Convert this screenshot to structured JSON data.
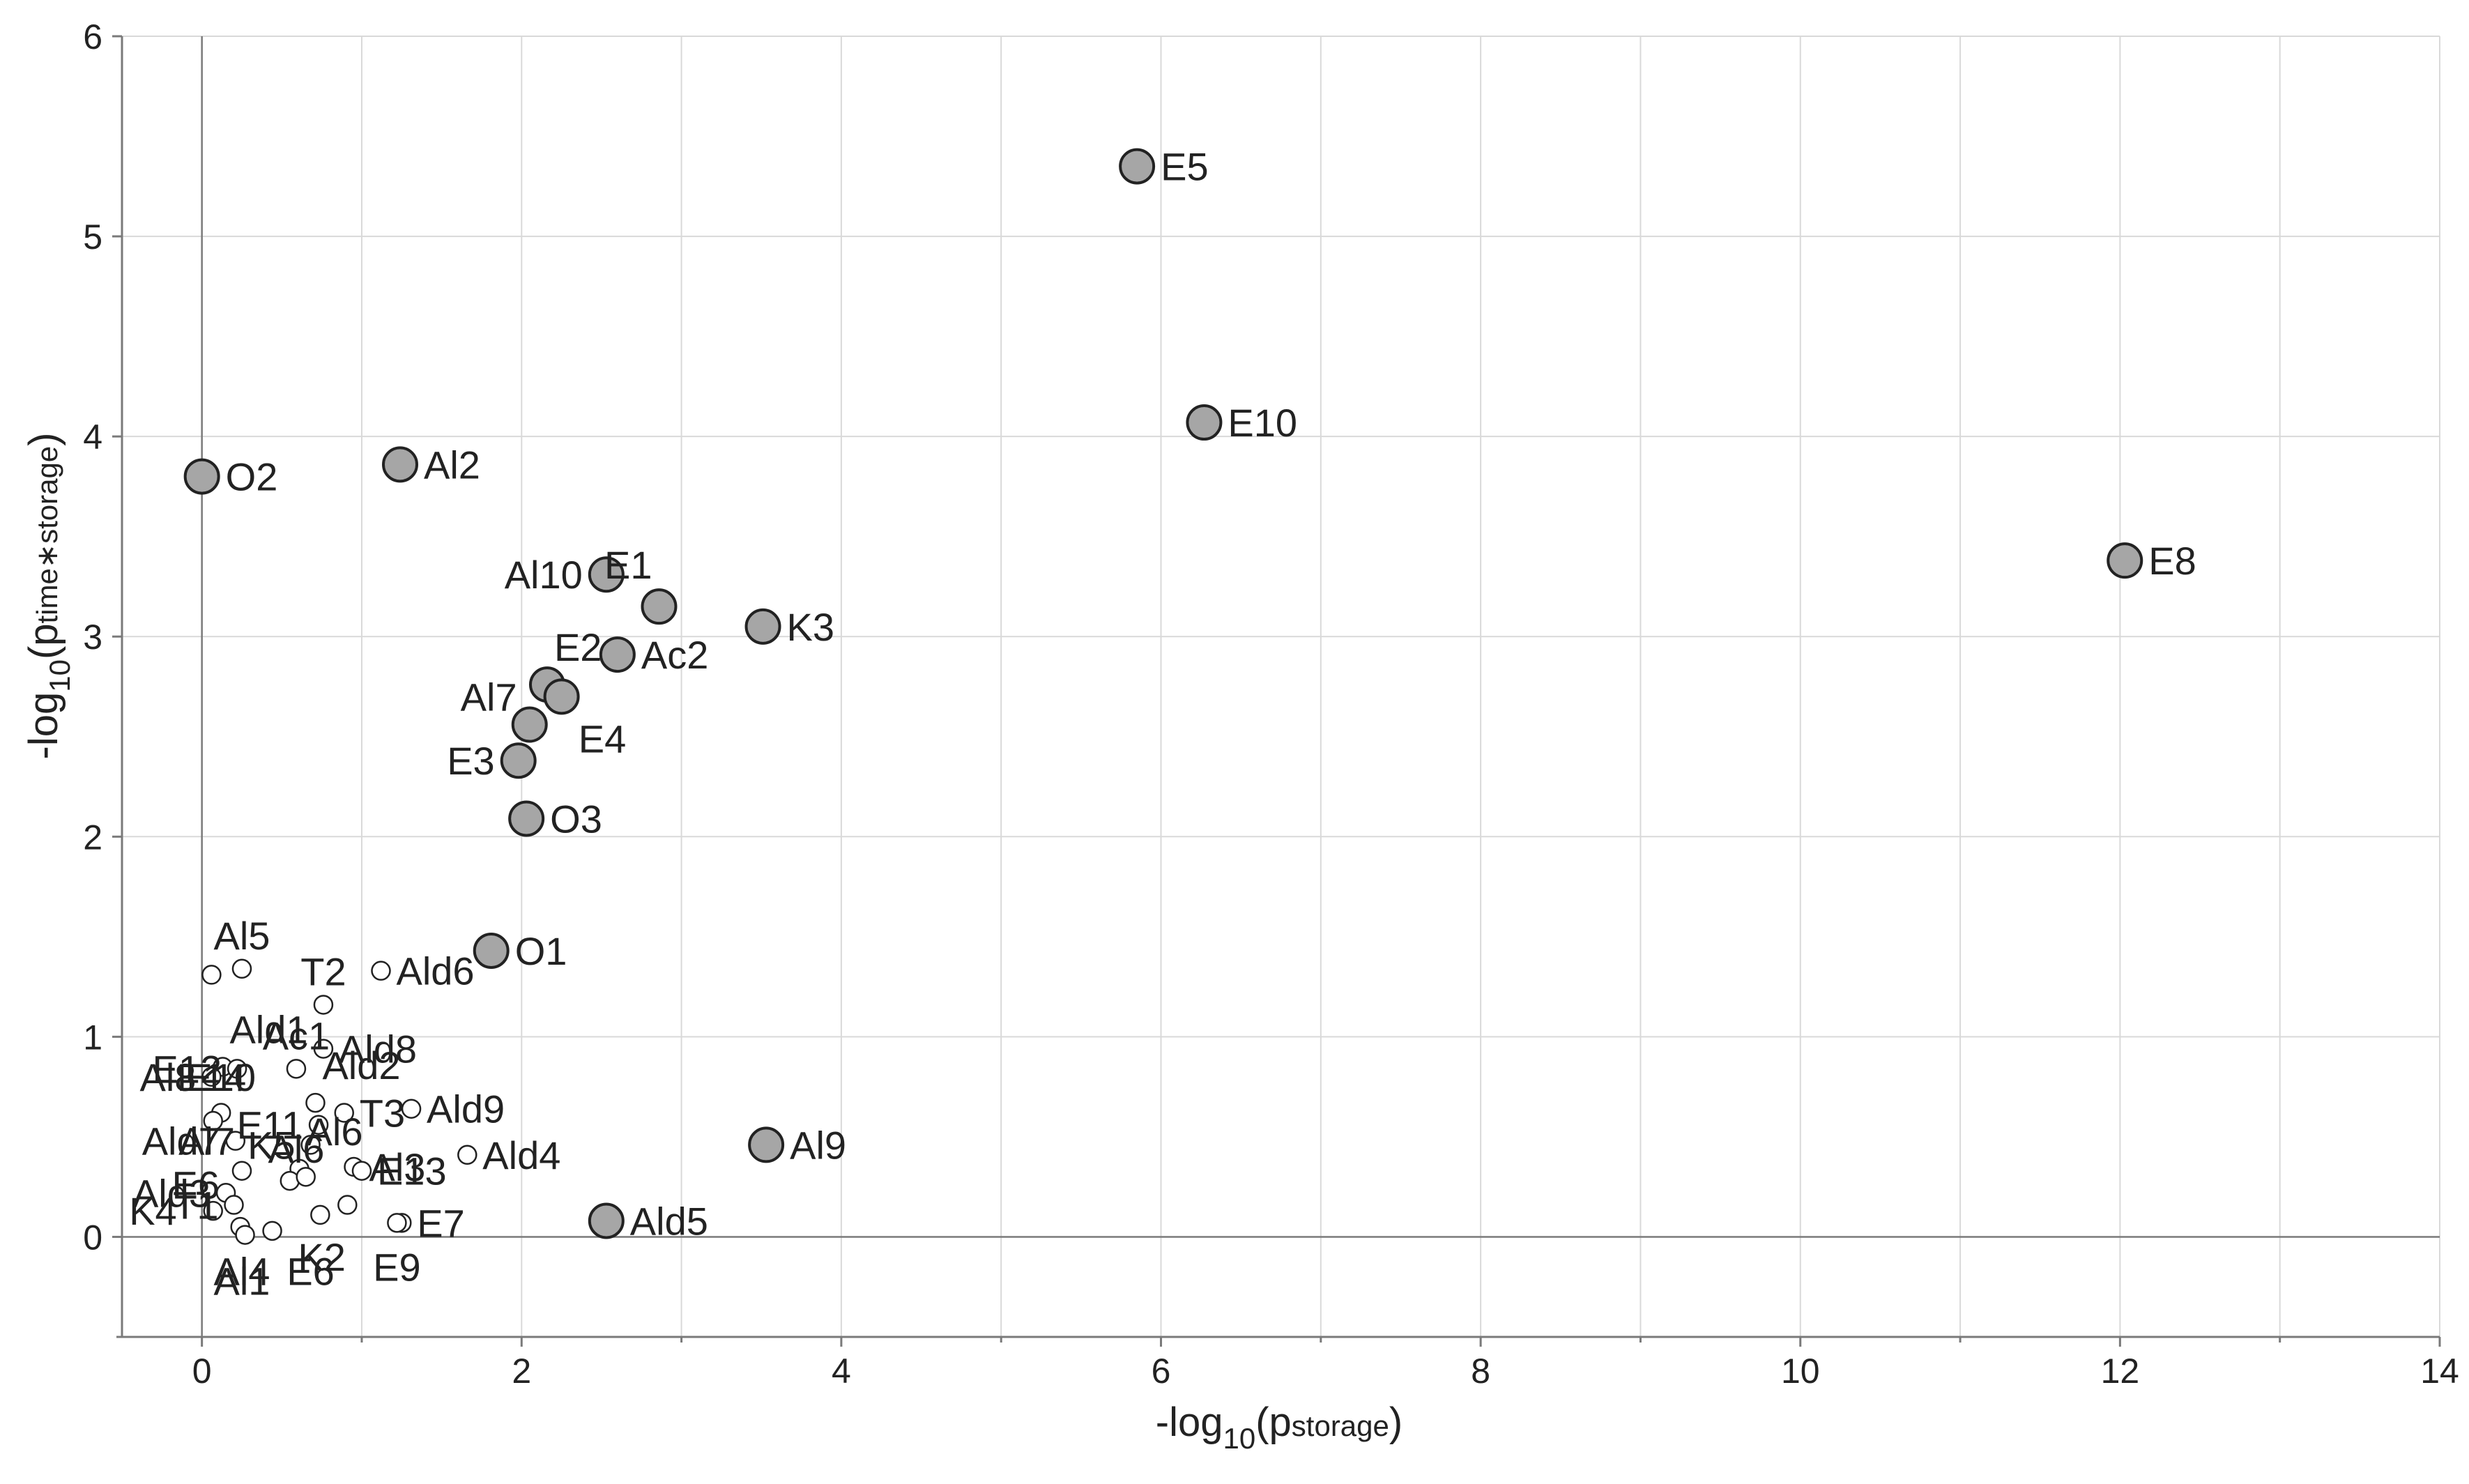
{
  "chart_data": {
    "type": "scatter",
    "title": "",
    "xlabel": {
      "prefix": "-log",
      "base": "10",
      "open": "(p",
      "subscript": "storage",
      "close": ")"
    },
    "ylabel": {
      "prefix": "-log",
      "base": "10",
      "open": "(p",
      "subscript": "time∗storage",
      "close": ")"
    },
    "xlim": [
      -0.5,
      14
    ],
    "ylim": [
      -0.5,
      6
    ],
    "xticks": [
      0,
      2,
      4,
      6,
      8,
      10,
      12,
      14
    ],
    "yticks": [
      0,
      1,
      2,
      3,
      4,
      5,
      6
    ],
    "grid": true,
    "colors": {
      "significant_fill": "#a6a6a6",
      "nonsignificant_fill": "#ffffff",
      "marker_stroke": "#222222"
    },
    "points": [
      {
        "label": "E5",
        "x": 5.85,
        "y": 5.35,
        "sig": true,
        "pos": "right"
      },
      {
        "label": "E10",
        "x": 6.27,
        "y": 4.07,
        "sig": true,
        "pos": "right"
      },
      {
        "label": "E8",
        "x": 12.03,
        "y": 3.38,
        "sig": true,
        "pos": "right"
      },
      {
        "label": "O2",
        "x": 0.0,
        "y": 3.8,
        "sig": true,
        "pos": "right"
      },
      {
        "label": "Al2",
        "x": 1.24,
        "y": 3.86,
        "sig": true,
        "pos": "right"
      },
      {
        "label": "Al10",
        "x": 2.53,
        "y": 3.31,
        "sig": true,
        "pos": "left"
      },
      {
        "label": "E1",
        "x": 2.86,
        "y": 3.15,
        "sig": true,
        "pos": "upleft"
      },
      {
        "label": "K3",
        "x": 3.51,
        "y": 3.05,
        "sig": true,
        "pos": "right"
      },
      {
        "label": "Ac2",
        "x": 2.6,
        "y": 2.91,
        "sig": true,
        "pos": "right"
      },
      {
        "label": "E2",
        "x": 2.16,
        "y": 2.76,
        "sig": true,
        "pos": "upright"
      },
      {
        "label": "Al7",
        "x": 2.25,
        "y": 2.7,
        "sig": true,
        "pos": "farleft"
      },
      {
        "label": "E4",
        "x": 2.05,
        "y": 2.56,
        "sig": true,
        "pos": "downright"
      },
      {
        "label": "E3",
        "x": 1.98,
        "y": 2.38,
        "sig": true,
        "pos": "left"
      },
      {
        "label": "O3",
        "x": 2.03,
        "y": 2.09,
        "sig": true,
        "pos": "right"
      },
      {
        "label": "O1",
        "x": 1.81,
        "y": 1.43,
        "sig": true,
        "pos": "right"
      },
      {
        "label": "Al9",
        "x": 3.53,
        "y": 0.46,
        "sig": true,
        "pos": "right"
      },
      {
        "label": "Ald5",
        "x": 2.53,
        "y": 0.08,
        "sig": true,
        "pos": "right"
      },
      {
        "label": "Al5",
        "x": 0.25,
        "y": 1.34,
        "sig": false,
        "pos": "up"
      },
      {
        "label": "",
        "x": 0.06,
        "y": 1.31,
        "sig": false,
        "pos": "none"
      },
      {
        "label": "T2",
        "x": 0.76,
        "y": 1.16,
        "sig": false,
        "pos": "up"
      },
      {
        "label": "Ald6",
        "x": 1.12,
        "y": 1.33,
        "sig": false,
        "pos": "right"
      },
      {
        "label": "Ald1",
        "x": 0.13,
        "y": 0.85,
        "sig": false,
        "pos": "upright"
      },
      {
        "label": "Ac1",
        "x": 0.59,
        "y": 0.84,
        "sig": false,
        "pos": "up"
      },
      {
        "label": "Ald8",
        "x": 0.76,
        "y": 0.94,
        "sig": false,
        "pos": "right"
      },
      {
        "label": "Ald2",
        "x": 0.71,
        "y": 0.67,
        "sig": false,
        "pos": "upright"
      },
      {
        "label": "E12",
        "x": 0.22,
        "y": 0.84,
        "sig": false,
        "pos": "left"
      },
      {
        "label": "Al8",
        "x": 0.06,
        "y": 0.8,
        "sig": false,
        "pos": "left"
      },
      {
        "label": "T3",
        "x": 0.89,
        "y": 0.62,
        "sig": false,
        "pos": "right"
      },
      {
        "label": "Ald9",
        "x": 1.31,
        "y": 0.64,
        "sig": false,
        "pos": "right"
      },
      {
        "label": "",
        "x": 0.12,
        "y": 0.62,
        "sig": false,
        "pos": "none"
      },
      {
        "label": "",
        "x": 0.07,
        "y": 0.58,
        "sig": false,
        "pos": "none"
      },
      {
        "label": "Ald7",
        "x": 0.21,
        "y": 0.48,
        "sig": false,
        "pos": "left"
      },
      {
        "label": "E6",
        "x": 0.25,
        "y": 0.33,
        "sig": false,
        "pos": "far-left"
      },
      {
        "label": "Ald3",
        "x": 0.15,
        "y": 0.22,
        "sig": false,
        "pos": "left"
      },
      {
        "label": "E11",
        "x": 0.73,
        "y": 0.56,
        "sig": false,
        "pos": "left"
      },
      {
        "label": "K5",
        "x": 0.68,
        "y": 0.46,
        "sig": false,
        "pos": "left"
      },
      {
        "label": "Al6",
        "x": 0.61,
        "y": 0.34,
        "sig": false,
        "pos": "upright"
      },
      {
        "label": "",
        "x": 0.55,
        "y": 0.28,
        "sig": false,
        "pos": "none"
      },
      {
        "label": "Al3",
        "x": 0.65,
        "y": 0.3,
        "sig": false,
        "pos": "none"
      },
      {
        "label": "Al3",
        "x": 0.95,
        "y": 0.35,
        "sig": false,
        "pos": "right"
      },
      {
        "label": "E13",
        "x": 1.0,
        "y": 0.33,
        "sig": false,
        "pos": "right"
      },
      {
        "label": "Ald4",
        "x": 1.66,
        "y": 0.41,
        "sig": false,
        "pos": "right"
      },
      {
        "label": "T1",
        "x": 0.2,
        "y": 0.16,
        "sig": false,
        "pos": "left"
      },
      {
        "label": "K4",
        "x": 0.07,
        "y": 0.13,
        "sig": false,
        "pos": "farleft"
      },
      {
        "label": "",
        "x": 0.24,
        "y": 0.05,
        "sig": false,
        "pos": "none"
      },
      {
        "label": "",
        "x": 0.27,
        "y": 0.01,
        "sig": false,
        "pos": "none"
      },
      {
        "label": "",
        "x": 0.44,
        "y": 0.03,
        "sig": false,
        "pos": "none"
      },
      {
        "label": "",
        "x": 0.74,
        "y": 0.11,
        "sig": false,
        "pos": "none"
      },
      {
        "label": "",
        "x": 0.91,
        "y": 0.16,
        "sig": false,
        "pos": "none"
      },
      {
        "label": "E7",
        "x": 1.25,
        "y": 0.07,
        "sig": false,
        "pos": "right"
      },
      {
        "label": "",
        "x": 1.22,
        "y": 0.07,
        "sig": false,
        "pos": "none"
      }
    ],
    "extra_labels": [
      {
        "text": "Al4",
        "x": 0.25,
        "y": -0.17
      },
      {
        "text": "Al1",
        "x": 0.25,
        "y": -0.22
      },
      {
        "text": "E6",
        "x": 0.68,
        "y": -0.17
      },
      {
        "text": "K2",
        "x": 0.75,
        "y": -0.1
      },
      {
        "text": "E9",
        "x": 1.22,
        "y": -0.15
      },
      {
        "text": "E14",
        "x": 0.06,
        "y": 0.8
      },
      {
        "text": "E10",
        "x": 0.12,
        "y": 0.8
      },
      {
        "text": "Al7",
        "x": 0.03,
        "y": 0.48
      },
      {
        "text": "Al6",
        "x": 0.59,
        "y": 0.44
      }
    ]
  }
}
